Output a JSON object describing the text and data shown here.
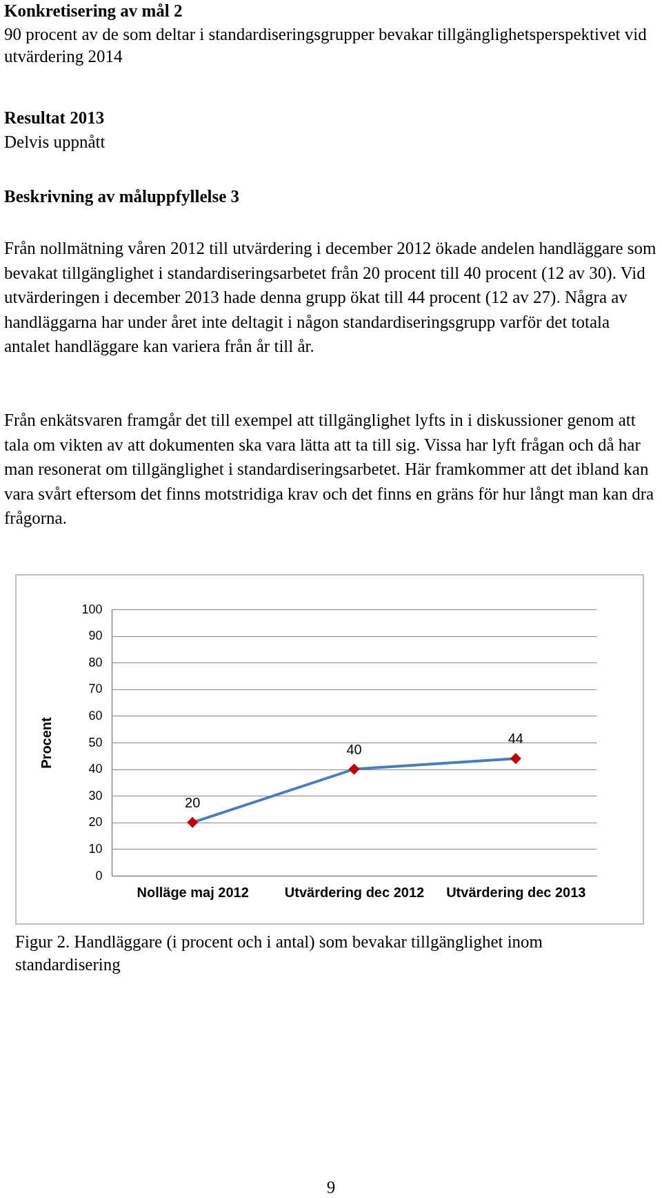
{
  "chart_data": {
    "type": "line",
    "title": "Konkretisering av mål 2",
    "subtitle": "90 procent av de som deltar i standardiseringsgrupper bevakar tillgänglighetsperspektivet vid utvärdering 2014",
    "annotations": [
      "Resultat 2013",
      "Delvis uppnått",
      "Beskrivning av måluppfyllelse 3",
      "Från nollmätning våren 2012 till utvärdering i december 2012 ökade andelen handläggare som bevakat tillgänglighet i standardiseringsarbetet från 20 procent till 40 procent (12 av 30). Vid utvärderingen i december 2013 hade denna grupp ökat till 44 procent (12 av 27). Några av handläggarna har under året inte deltagit i någon standardiseringsgrupp varför det totala antalet handläggare kan variera från år till år.",
      "Från enkätsvaren framgår det till exempel att tillgänglighet lyfts in i diskussioner genom att tala om vikten av att dokumenten ska vara lätta att ta till sig. Vissa har lyft frågan och då har man resonerat om tillgänglighet i standardiseringsarbetet. Här framkommer att det ibland kan vara svårt eftersom det finns motstridiga krav och det finns en gräns för hur långt man kan dra frågorna.",
      "Figur 2. Handläggare (i procent och i antal) som bevakar tillgänglighet inom standardisering",
      "9"
    ],
    "ylabel": "Procent",
    "categories": [
      "Nolläge maj 2012",
      "Utvärdering dec 2012",
      "Utvärdering dec 2013"
    ],
    "series": [
      {
        "color": "#4a7ebb",
        "colors": [
          "#c00000",
          "#c00000",
          "#c00000"
        ],
        "values": [
          20,
          40,
          44
        ]
      }
    ],
    "ylim": [
      0,
      100
    ],
    "yticks": [
      0,
      10,
      20,
      30,
      40,
      50,
      60,
      70,
      80,
      90,
      100
    ],
    "grid": "y",
    "marker": "diamond",
    "line_style": "solid",
    "data_labels": true
  }
}
